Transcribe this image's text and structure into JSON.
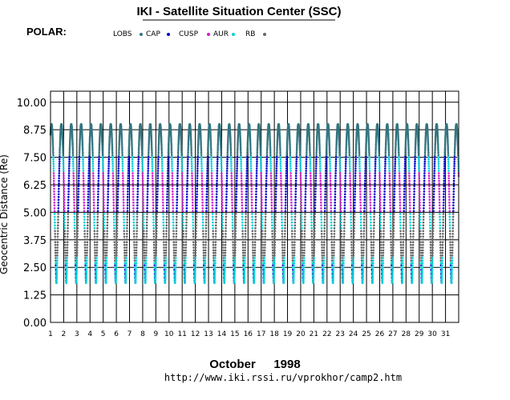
{
  "chart_data": {
    "type": "scatter",
    "title": "IKI - Satellite Situation Center (SSC)",
    "satellite": "POLAR:",
    "ylabel": "Geocentric Distance (Re)",
    "xlabel_month": "October",
    "xlabel_year": "1998",
    "url": "http://www.iki.rssi.ru/vprokhor/camp2.htm",
    "ylim": [
      0,
      10.5
    ],
    "xlim": [
      1,
      32
    ],
    "yticks": [
      "10.00",
      "8.75",
      "7.50",
      "6.25",
      "5.00",
      "3.75",
      "2.50",
      "1.25",
      "0.00"
    ],
    "ytick_values": [
      10,
      8.75,
      7.5,
      6.25,
      5,
      3.75,
      2.5,
      1.25,
      0
    ],
    "xticks": [
      "1",
      "2",
      "3",
      "4",
      "5",
      "6",
      "7",
      "8",
      "9",
      "10",
      "11",
      "12",
      "13",
      "14",
      "15",
      "16",
      "17",
      "18",
      "19",
      "20",
      "21",
      "22",
      "23",
      "24",
      "25",
      "26",
      "27",
      "28",
      "29",
      "30",
      "31"
    ],
    "orbit_period_days": 0.75,
    "apogee_re": 9.0,
    "perigee_re": 1.8,
    "series": [
      {
        "name": "LOBS",
        "color": "#337580",
        "range_re": [
          7.6,
          9.1
        ]
      },
      {
        "name": "CAP",
        "color": "#0000cc",
        "range_re": [
          5.0,
          8.5
        ]
      },
      {
        "name": "CUSP",
        "color": "#d01fd0",
        "range_re": [
          4.2,
          6.8
        ]
      },
      {
        "name": "AUR",
        "color": "#00cfd8",
        "range_re": [
          1.8,
          5.0
        ]
      },
      {
        "name": "RB",
        "color": "#666666",
        "range_re": [
          2.0,
          4.0
        ]
      }
    ]
  }
}
